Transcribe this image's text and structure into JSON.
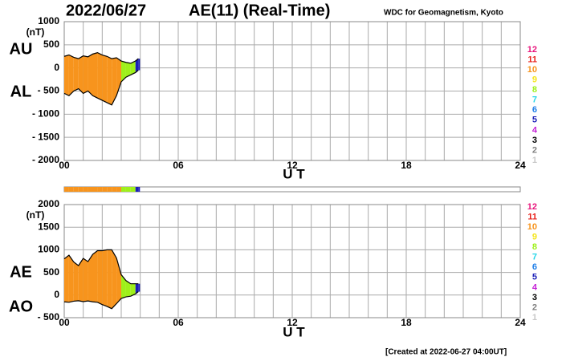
{
  "header": {
    "date": "2022/06/27",
    "title": "AE(11) (Real-Time)",
    "source": "WDC for Geomagnetism, Kyoto"
  },
  "footer": "[Created at 2022-06-27 04:00UT]",
  "coverage": {
    "stations": [
      10,
      10,
      10,
      10,
      10,
      10,
      10,
      10,
      10,
      10,
      10,
      10,
      8,
      8,
      8,
      5,
      5
    ],
    "legend": [
      {
        "label": 12,
        "color": "#e8177d"
      },
      {
        "label": 11,
        "color": "#e8201a"
      },
      {
        "label": 10,
        "color": "#f7941d"
      },
      {
        "label": 9,
        "color": "#f5e51b"
      },
      {
        "label": 8,
        "color": "#9ef01a"
      },
      {
        "label": 7,
        "color": "#27d6e8"
      },
      {
        "label": 6,
        "color": "#1f7fe8"
      },
      {
        "label": 5,
        "color": "#1b1fb8"
      },
      {
        "label": 4,
        "color": "#c41fd6"
      },
      {
        "label": 3,
        "color": "#000000"
      },
      {
        "label": 2,
        "color": "#808080"
      },
      {
        "label": 1,
        "color": "#c8c8c8"
      }
    ]
  },
  "chart_data": [
    {
      "type": "area",
      "unit": "(nT)",
      "xlabel": "U T",
      "x": [
        0,
        0.25,
        0.5,
        0.75,
        1,
        1.25,
        1.5,
        1.75,
        2,
        2.25,
        2.5,
        2.75,
        3,
        3.25,
        3.5,
        3.75,
        3.9
      ],
      "series": [
        {
          "name": "AU",
          "color": "#000000",
          "values": [
            250,
            280,
            230,
            200,
            260,
            240,
            300,
            330,
            280,
            250,
            200,
            220,
            150,
            120,
            100,
            150,
            200
          ]
        },
        {
          "name": "AL",
          "color": "#000000",
          "values": [
            -550,
            -600,
            -500,
            -450,
            -550,
            -500,
            -600,
            -650,
            -700,
            -750,
            -800,
            -600,
            -300,
            -200,
            -150,
            -100,
            -50
          ]
        }
      ],
      "xlim": [
        0,
        24
      ],
      "xticks": [
        {
          "value": 0,
          "label": "00"
        },
        {
          "value": 6,
          "label": "06"
        },
        12,
        18,
        24
      ],
      "xgrid": [
        1,
        2,
        3,
        4,
        5,
        6,
        7,
        8,
        9,
        10,
        11,
        12,
        13,
        14,
        15,
        16,
        17,
        18,
        19,
        20,
        21,
        22,
        23
      ],
      "ylim": [
        -2000,
        1000
      ],
      "yticks": [
        {
          "value": -2000,
          "label": "- 2000"
        },
        {
          "value": -1500,
          "label": "- 1500"
        },
        {
          "value": -1000,
          "label": "- 1000"
        },
        {
          "value": -500,
          "label": "- 500"
        },
        0,
        500,
        1000
      ],
      "grid": true
    },
    {
      "type": "area",
      "unit": "(nT)",
      "xlabel": "U T",
      "x": [
        0,
        0.25,
        0.5,
        0.75,
        1,
        1.25,
        1.5,
        1.75,
        2,
        2.25,
        2.5,
        2.75,
        3,
        3.25,
        3.5,
        3.75,
        3.9
      ],
      "series": [
        {
          "name": "AE",
          "color": "#000000",
          "values": [
            800,
            880,
            730,
            650,
            810,
            740,
            900,
            980,
            980,
            1000,
            1000,
            820,
            450,
            320,
            250,
            250,
            250
          ]
        },
        {
          "name": "AO",
          "color": "#000000",
          "values": [
            -150,
            -160,
            -135,
            -125,
            -145,
            -130,
            -150,
            -160,
            -210,
            -250,
            -300,
            -190,
            -75,
            -40,
            -25,
            25,
            75
          ]
        }
      ],
      "xlim": [
        0,
        24
      ],
      "xticks": [
        {
          "value": 0,
          "label": "00"
        },
        {
          "value": 6,
          "label": "06"
        },
        12,
        18,
        24
      ],
      "xgrid": [
        1,
        2,
        3,
        4,
        5,
        6,
        7,
        8,
        9,
        10,
        11,
        12,
        13,
        14,
        15,
        16,
        17,
        18,
        19,
        20,
        21,
        22,
        23
      ],
      "ylim": [
        -500,
        2000
      ],
      "yticks": [
        {
          "value": -500,
          "label": "- 500"
        },
        0,
        500,
        1000,
        1500,
        2000
      ],
      "grid": true
    }
  ]
}
